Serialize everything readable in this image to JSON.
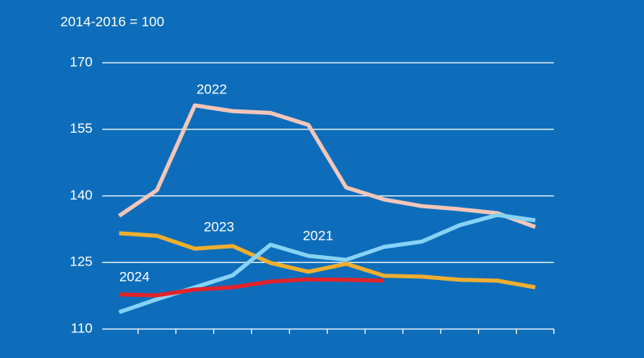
{
  "chart_data": {
    "type": "line",
    "subtitle": "2014-2016 = 100",
    "categories": [
      null,
      null,
      null,
      null,
      null,
      null,
      null,
      null,
      null,
      null,
      null,
      null
    ],
    "ylim": [
      110,
      170
    ],
    "yticks": [
      110,
      125,
      140,
      155,
      170
    ],
    "grid": true,
    "series": [
      {
        "name": "2022",
        "color": "#f3c6b9",
        "values": [
          135.5,
          141.3,
          160.4,
          159.1,
          158.7,
          156.0,
          141.9,
          139.2,
          137.7,
          137.0,
          136.1,
          133.0
        ]
      },
      {
        "name": "2023",
        "color": "#f0ae2e",
        "values": [
          131.6,
          131.0,
          128.1,
          128.7,
          124.9,
          122.9,
          124.7,
          122.0,
          121.8,
          121.1,
          120.9,
          119.4
        ]
      },
      {
        "name": "2021",
        "color": "#86d3f6",
        "values": [
          113.8,
          116.7,
          119.4,
          122.1,
          129.0,
          126.5,
          125.6,
          128.5,
          129.7,
          133.4,
          135.7,
          134.5
        ]
      },
      {
        "name": "2024",
        "color": "#e3232b",
        "values": [
          117.8,
          117.6,
          118.9,
          119.4,
          120.7,
          121.2,
          121.1,
          120.9,
          null,
          null,
          null,
          null
        ]
      }
    ]
  }
}
